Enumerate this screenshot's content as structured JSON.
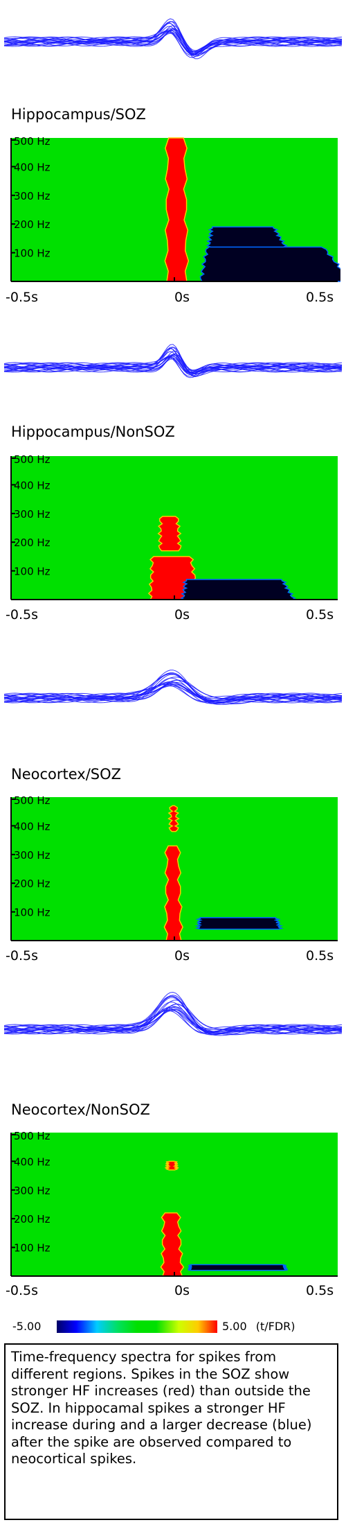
{
  "panels": [
    {
      "id": "hippocampus-soz",
      "title": "Hippocampus/SOZ",
      "freq_ticks": [
        "500 Hz",
        "400 Hz",
        "300 Hz",
        "200 Hz",
        "100 Hz"
      ],
      "time_ticks": [
        "-0.5s",
        "0s",
        "0.5s"
      ],
      "blobs": [
        {
          "color": "red",
          "t0": -0.015,
          "t1": 0.005,
          "f0": 0,
          "f1": 500,
          "w0": 0.055,
          "w1": 0.045
        },
        {
          "color": "blue",
          "t0": 0.11,
          "t1": 0.42,
          "f0": 0,
          "f1": 120,
          "w0": 0.2,
          "w1": 0.06
        },
        {
          "color": "blue",
          "t0": 0.12,
          "t1": 0.28,
          "f0": 120,
          "f1": 190,
          "w0": 0.1,
          "w1": 0.04
        }
      ]
    },
    {
      "id": "hippocampus-nonsoz",
      "title": "Hippocampus/NonSOZ",
      "freq_ticks": [
        "500 Hz",
        "400 Hz",
        "300 Hz",
        "200 Hz",
        "100 Hz"
      ],
      "time_ticks": [
        "-0.5s",
        "0s",
        "0.5s"
      ],
      "blobs": [
        {
          "color": "red",
          "t0": -0.06,
          "t1": 0.02,
          "f0": 0,
          "f1": 150,
          "w0": 0.09,
          "w1": 0.05
        },
        {
          "color": "red",
          "t0": -0.04,
          "t1": 0.0,
          "f0": 170,
          "f1": 290,
          "w0": 0.03,
          "w1": 0.015
        },
        {
          "color": "blue",
          "t0": 0.05,
          "t1": 0.27,
          "f0": 0,
          "f1": 70,
          "w0": 0.16,
          "w1": 0.1
        }
      ]
    },
    {
      "id": "neocortex-soz",
      "title": "Neocortex/SOZ",
      "freq_ticks": [
        "500 Hz",
        "400 Hz",
        "300 Hz",
        "200 Hz",
        "100 Hz"
      ],
      "time_ticks": [
        "-0.5s",
        "0s",
        "0.5s"
      ],
      "blobs": [
        {
          "color": "red",
          "t0": -0.02,
          "t1": 0.0,
          "f0": 0,
          "f1": 330,
          "w0": 0.035,
          "w1": 0.02
        },
        {
          "color": "red",
          "t0": -0.01,
          "t1": 0.0,
          "f0": 380,
          "f1": 470,
          "w0": 0.015,
          "w1": 0.01
        },
        {
          "color": "blue",
          "t0": 0.08,
          "t1": 0.3,
          "f0": 40,
          "f1": 80,
          "w0": 0.04,
          "w1": 0.02
        }
      ]
    },
    {
      "id": "neocortex-nonsoz",
      "title": "Neocortex/NonSOZ",
      "freq_ticks": [
        "500 Hz",
        "400 Hz",
        "300 Hz",
        "200 Hz",
        "100 Hz"
      ],
      "time_ticks": [
        "-0.5s",
        "0s",
        "0.5s"
      ],
      "blobs": [
        {
          "color": "red",
          "t0": -0.03,
          "t1": 0.0,
          "f0": 0,
          "f1": 220,
          "w0": 0.04,
          "w1": 0.02
        },
        {
          "color": "red",
          "t0": -0.02,
          "t1": 0.0,
          "f0": 370,
          "f1": 400,
          "w0": 0.01,
          "w1": 0.008
        },
        {
          "color": "blue",
          "t0": 0.05,
          "t1": 0.33,
          "f0": 20,
          "f1": 40,
          "w0": 0.02,
          "w1": 0.01
        }
      ]
    }
  ],
  "colorbar": {
    "min_label": "-5.00",
    "max_label": "5.00",
    "unit_label": "(t/FDR)"
  },
  "caption": "Time-frequency spectra for spikes from different regions. Spikes in the SOZ show stronger HF increases (red) than outside the SOZ. In hippocamal spikes a stronger HF increase during and a larger decrease (blue) after the spike are observed compared to neocortical spikes.",
  "chart_data": [
    {
      "type": "heatmap",
      "title": "Hippocampus/SOZ",
      "x_range": [
        -0.5,
        0.5
      ],
      "y_range": [
        0,
        500
      ],
      "xticks": [
        "-0.5s",
        "0s",
        "0.5s"
      ],
      "yticks": [
        "100 Hz",
        "200 Hz",
        "300 Hz",
        "400 Hz",
        "500 Hz"
      ],
      "color_range": [
        -5.0,
        5.0
      ]
    },
    {
      "type": "heatmap",
      "title": "Hippocampus/NonSOZ",
      "x_range": [
        -0.5,
        0.5
      ],
      "y_range": [
        0,
        500
      ],
      "xticks": [
        "-0.5s",
        "0s",
        "0.5s"
      ],
      "yticks": [
        "100 Hz",
        "200 Hz",
        "300 Hz",
        "400 Hz",
        "500 Hz"
      ],
      "color_range": [
        -5.0,
        5.0
      ]
    },
    {
      "type": "heatmap",
      "title": "Neocortex/SOZ",
      "x_range": [
        -0.5,
        0.5
      ],
      "y_range": [
        0,
        500
      ],
      "xticks": [
        "-0.5s",
        "0s",
        "0.5s"
      ],
      "yticks": [
        "100 Hz",
        "200 Hz",
        "300 Hz",
        "400 Hz",
        "500 Hz"
      ],
      "color_range": [
        -5.0,
        5.0
      ]
    },
    {
      "type": "heatmap",
      "title": "Neocortex/NonSOZ",
      "x_range": [
        -0.5,
        0.5
      ],
      "y_range": [
        0,
        500
      ],
      "xticks": [
        "-0.5s",
        "0s",
        "0.5s"
      ],
      "yticks": [
        "100 Hz",
        "200 Hz",
        "300 Hz",
        "400 Hz",
        "500 Hz"
      ],
      "color_range": [
        -5.0,
        5.0
      ]
    }
  ]
}
